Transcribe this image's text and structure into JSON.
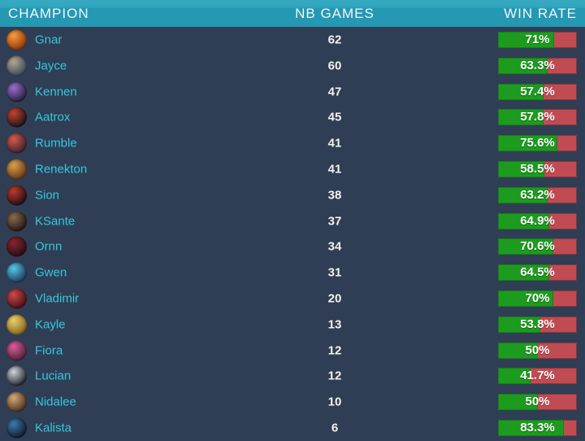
{
  "header": {
    "columns": [
      {
        "label": "CHAMPION",
        "align": "left"
      },
      {
        "label": "NB GAMES",
        "align": "center"
      },
      {
        "label": "WIN RATE",
        "align": "right"
      }
    ]
  },
  "colors": {
    "header_bg": "#2598b3",
    "row_bg": "#2f3e54",
    "name": "#35c8dd",
    "win_green": "#1d9b1e",
    "loss_red": "#c14b52",
    "bar_text": "#ffffff"
  },
  "table": {
    "rows": [
      {
        "champion": "Gnar",
        "nb_games": "62",
        "win_rate": "71%",
        "win_pct": 71,
        "icon_colors": [
          "#ff9a3d",
          "#8a3a10"
        ]
      },
      {
        "champion": "Jayce",
        "nb_games": "60",
        "win_rate": "63.3%",
        "win_pct": 63.3,
        "icon_colors": [
          "#b7a58e",
          "#3a4a5c"
        ]
      },
      {
        "champion": "Kennen",
        "nb_games": "47",
        "win_rate": "57.4%",
        "win_pct": 57.4,
        "icon_colors": [
          "#9a6fd0",
          "#2a1f3d"
        ]
      },
      {
        "champion": "Aatrox",
        "nb_games": "45",
        "win_rate": "57.8%",
        "win_pct": 57.8,
        "icon_colors": [
          "#c24432",
          "#1d1418"
        ]
      },
      {
        "champion": "Rumble",
        "nb_games": "41",
        "win_rate": "75.6%",
        "win_pct": 75.6,
        "icon_colors": [
          "#d8584a",
          "#3a2430"
        ]
      },
      {
        "champion": "Renekton",
        "nb_games": "41",
        "win_rate": "58.5%",
        "win_pct": 58.5,
        "icon_colors": [
          "#d8a04a",
          "#6b3a1a"
        ]
      },
      {
        "champion": "Sion",
        "nb_games": "38",
        "win_rate": "63.2%",
        "win_pct": 63.2,
        "icon_colors": [
          "#c0392b",
          "#201018"
        ]
      },
      {
        "champion": "KSante",
        "nb_games": "37",
        "win_rate": "64.9%",
        "win_pct": 64.9,
        "icon_colors": [
          "#8a6a4e",
          "#241a14"
        ]
      },
      {
        "champion": "Ornn",
        "nb_games": "34",
        "win_rate": "70.6%",
        "win_pct": 70.6,
        "icon_colors": [
          "#8a2430",
          "#2a0f16"
        ]
      },
      {
        "champion": "Gwen",
        "nb_games": "31",
        "win_rate": "64.5%",
        "win_pct": 64.5,
        "icon_colors": [
          "#55c8e8",
          "#1e3a5c"
        ]
      },
      {
        "champion": "Vladimir",
        "nb_games": "20",
        "win_rate": "70%",
        "win_pct": 70,
        "icon_colors": [
          "#d0484a",
          "#4a1016"
        ]
      },
      {
        "champion": "Kayle",
        "nb_games": "13",
        "win_rate": "53.8%",
        "win_pct": 53.8,
        "icon_colors": [
          "#e8cf6a",
          "#8a6a1e"
        ]
      },
      {
        "champion": "Fiora",
        "nb_games": "12",
        "win_rate": "50%",
        "win_pct": 50,
        "icon_colors": [
          "#e05a9a",
          "#4a2438"
        ]
      },
      {
        "champion": "Lucian",
        "nb_games": "12",
        "win_rate": "41.7%",
        "win_pct": 41.7,
        "icon_colors": [
          "#cfd4da",
          "#23262e"
        ]
      },
      {
        "champion": "Nidalee",
        "nb_games": "10",
        "win_rate": "50%",
        "win_pct": 50,
        "icon_colors": [
          "#d8a878",
          "#4a3220"
        ]
      },
      {
        "champion": "Kalista",
        "nb_games": "6",
        "win_rate": "83.3%",
        "win_pct": 83.3,
        "icon_colors": [
          "#3a7ab0",
          "#141c2e"
        ]
      }
    ]
  }
}
